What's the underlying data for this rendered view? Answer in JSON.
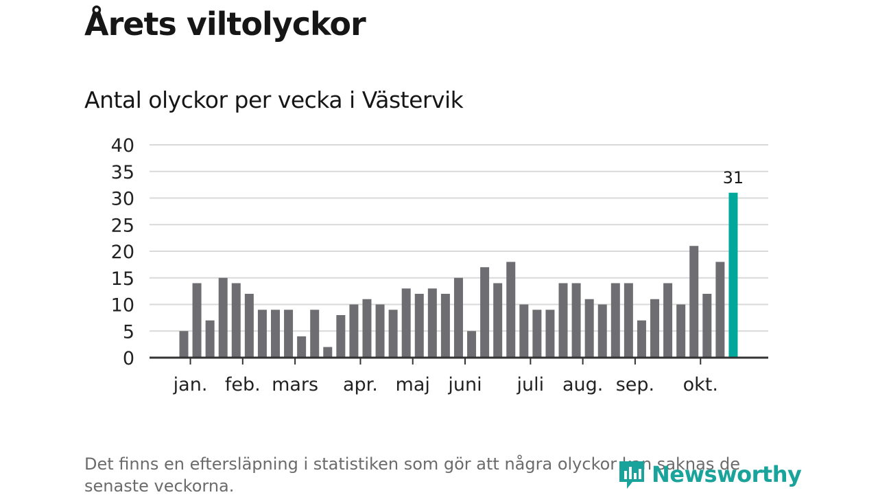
{
  "title": "Årets viltolyckor",
  "subtitle": "Antal olyckor per vecka i Västervik",
  "footnote": "Det finns en eftersläpning i statistiken som gör att några olyckor kan saknas de senaste veckorna.",
  "brand": {
    "name": "Newsworthy",
    "icon": "newsworthy-logo-icon",
    "color": "#1aa39b"
  },
  "colors": {
    "bar": "#6e6d72",
    "highlight": "#00a89c",
    "grid": "#d9d9d9",
    "axis": "#333333"
  },
  "chart_data": {
    "type": "bar",
    "values": [
      5,
      14,
      7,
      15,
      14,
      12,
      9,
      9,
      9,
      4,
      9,
      2,
      8,
      10,
      11,
      10,
      9,
      13,
      12,
      13,
      12,
      15,
      5,
      17,
      14,
      18,
      10,
      9,
      9,
      14,
      14,
      11,
      10,
      14,
      14,
      7,
      11,
      14,
      10,
      21,
      12,
      18,
      31
    ],
    "highlight_last": true,
    "data_labels": [
      {
        "index": 42,
        "text": "31"
      }
    ],
    "ylim": [
      0,
      40
    ],
    "yticks": [
      0,
      5,
      10,
      15,
      20,
      25,
      30,
      35,
      40
    ],
    "month_labels": [
      {
        "label": "jan.",
        "bar": 0.5
      },
      {
        "label": "feb.",
        "bar": 4.5
      },
      {
        "label": "mars",
        "bar": 8.5
      },
      {
        "label": "apr.",
        "bar": 13.5
      },
      {
        "label": "maj",
        "bar": 17.5
      },
      {
        "label": "juni",
        "bar": 21.5
      },
      {
        "label": "juli",
        "bar": 26.5
      },
      {
        "label": "aug.",
        "bar": 30.5
      },
      {
        "label": "sep.",
        "bar": 34.5
      },
      {
        "label": "okt.",
        "bar": 39.5
      }
    ],
    "grid": true
  }
}
